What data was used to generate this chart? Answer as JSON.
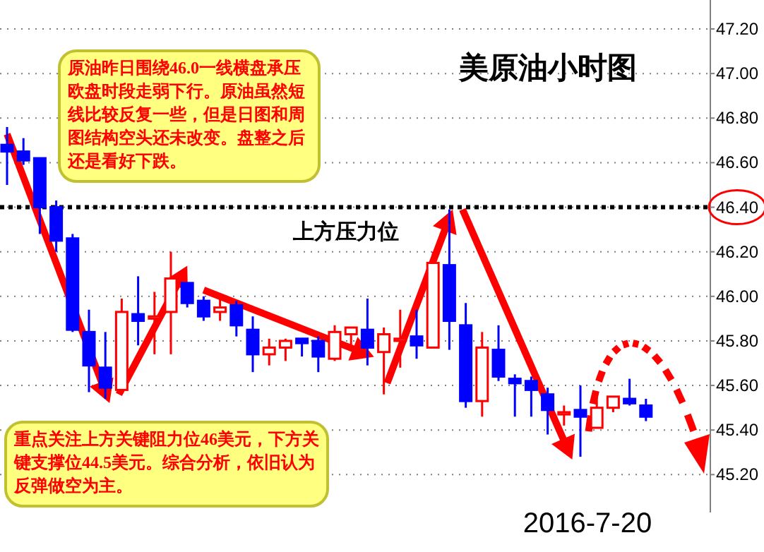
{
  "chart_data": {
    "type": "candlestick",
    "title": "美原油小时图",
    "categories": [
      null,
      null,
      null,
      null,
      null,
      null,
      null,
      null,
      null,
      null,
      null,
      null,
      null,
      null,
      null,
      null,
      null,
      null,
      null,
      null,
      null,
      null,
      null,
      null,
      null,
      null,
      null,
      null,
      null,
      null,
      null,
      null,
      null,
      null,
      null,
      null,
      null,
      null,
      null,
      null
    ],
    "ohlc": [
      [
        46.68,
        46.76,
        46.5,
        46.65
      ],
      [
        46.65,
        46.71,
        46.59,
        46.61
      ],
      [
        46.62,
        46.62,
        46.28,
        46.4
      ],
      [
        46.4,
        46.43,
        46.2,
        46.25
      ],
      [
        46.26,
        46.28,
        45.84,
        45.85
      ],
      [
        45.84,
        45.94,
        45.57,
        45.69
      ],
      [
        45.68,
        45.84,
        45.54,
        45.59
      ],
      [
        45.58,
        45.99,
        45.56,
        45.93
      ],
      [
        45.92,
        46.09,
        45.78,
        45.89
      ],
      [
        45.9,
        46.02,
        45.74,
        45.91
      ],
      [
        45.93,
        46.2,
        45.74,
        46.08
      ],
      [
        46.06,
        46.06,
        45.95,
        45.97
      ],
      [
        45.98,
        46.0,
        45.89,
        45.91
      ],
      [
        45.93,
        46.0,
        45.89,
        45.95
      ],
      [
        45.96,
        45.98,
        45.82,
        45.87
      ],
      [
        45.85,
        45.91,
        45.66,
        45.74
      ],
      [
        45.74,
        45.81,
        45.69,
        45.77
      ],
      [
        45.77,
        45.81,
        45.71,
        45.8
      ],
      [
        45.81,
        45.81,
        45.73,
        45.79
      ],
      [
        45.8,
        45.82,
        45.66,
        45.73
      ],
      [
        45.72,
        45.87,
        45.71,
        45.84
      ],
      [
        45.83,
        45.86,
        45.78,
        45.86
      ],
      [
        45.85,
        45.99,
        45.69,
        45.77
      ],
      [
        45.75,
        45.86,
        45.56,
        45.83
      ],
      [
        45.8,
        45.94,
        45.68,
        45.81
      ],
      [
        45.82,
        45.94,
        45.72,
        45.78
      ],
      [
        45.77,
        46.2,
        45.77,
        46.15
      ],
      [
        46.14,
        46.39,
        45.76,
        45.89
      ],
      [
        45.87,
        45.97,
        45.5,
        45.53
      ],
      [
        45.53,
        45.84,
        45.46,
        45.77
      ],
      [
        45.76,
        45.87,
        45.62,
        45.64
      ],
      [
        45.63,
        45.65,
        45.46,
        45.61
      ],
      [
        45.62,
        45.64,
        45.46,
        45.58
      ],
      [
        45.56,
        45.59,
        45.38,
        45.49
      ],
      [
        45.47,
        45.51,
        45.42,
        45.48
      ],
      [
        45.49,
        45.6,
        45.28,
        45.46
      ],
      [
        45.41,
        45.55,
        45.41,
        45.5
      ],
      [
        45.5,
        45.55,
        45.48,
        45.55
      ],
      [
        45.54,
        45.63,
        45.51,
        45.52
      ],
      [
        45.51,
        45.54,
        45.44,
        45.46
      ]
    ],
    "colors": [
      "#0000ff",
      "#0000ff",
      "#0000ff",
      "#0000ff",
      "#0000ff",
      "#0000ff",
      "#0000ff",
      "#ff0000",
      "#0000ff",
      "#ff0000",
      "#ff0000",
      "#0000ff",
      "#0000ff",
      "#ff0000",
      "#0000ff",
      "#0000ff",
      "#ff0000",
      "#ff0000",
      "#0000ff",
      "#0000ff",
      "#ff0000",
      "#ff0000",
      "#0000ff",
      "#ff0000",
      "#ff0000",
      "#0000ff",
      "#ff0000",
      "#0000ff",
      "#0000ff",
      "#ff0000",
      "#0000ff",
      "#0000ff",
      "#0000ff",
      "#0000ff",
      "#ff0000",
      "#0000ff",
      "#ff0000",
      "#ff0000",
      "#0000ff",
      "#0000ff"
    ],
    "ylim": [
      45.03,
      47.33
    ],
    "yticks": [
      {
        "value": 45.2,
        "label": "45.20"
      },
      {
        "value": 45.4,
        "label": "45.40"
      },
      {
        "value": 45.6,
        "label": "45.60"
      },
      {
        "value": 45.8,
        "label": "45.80"
      },
      {
        "value": 46.0,
        "label": "46.00"
      },
      {
        "value": 46.2,
        "label": "46.20"
      },
      {
        "value": 46.4,
        "label": "46.40"
      },
      {
        "value": 46.6,
        "label": "46.60"
      },
      {
        "value": 46.8,
        "label": "46.80"
      },
      {
        "value": 47.0,
        "label": "47.00"
      },
      {
        "value": 47.2,
        "label": "47.20"
      }
    ],
    "grid": "y",
    "tick_labels": "y",
    "ref_lines": [
      {
        "axis": "y",
        "value": 46.4,
        "label": "上方压力位",
        "color": "#000000",
        "line_style": "dotted"
      }
    ],
    "annotations": [
      "原油昨日围绕46.0一线横盘承压欧盘时段走弱下行。原油虽然短线比较反复一些，但是日图和周图结构空头还未改变。盘整之后还是看好下跌。",
      "重点关注上方关键阻力位46美元，下方关键支撑位44.5美元。综合分析，依旧认为反弹做空为主。",
      "2016-7-20"
    ]
  }
}
